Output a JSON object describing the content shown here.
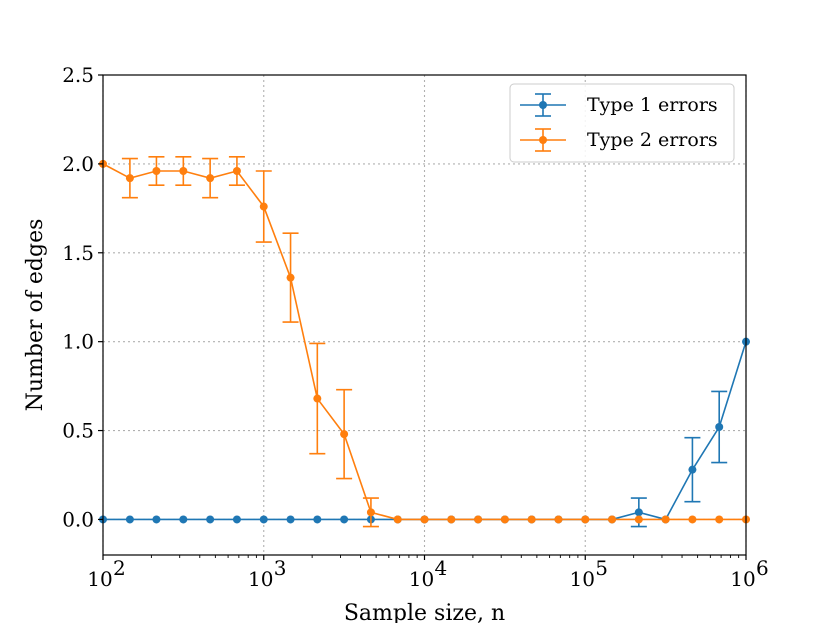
{
  "chart_data": {
    "type": "line",
    "xscale": "log",
    "xlim": [
      100,
      1000000
    ],
    "ylim": [
      -0.2,
      2.5
    ],
    "xlabel": "Sample size, n",
    "ylabel": "Number of edges",
    "grid": true,
    "legend_position": "top-right",
    "x_ticks": [
      {
        "value": 100,
        "base": "10",
        "exp": "2"
      },
      {
        "value": 1000,
        "base": "10",
        "exp": "3"
      },
      {
        "value": 10000,
        "base": "10",
        "exp": "4"
      },
      {
        "value": 100000,
        "base": "10",
        "exp": "5"
      },
      {
        "value": 1000000,
        "base": "10",
        "exp": "6"
      }
    ],
    "y_ticks": [
      {
        "value": 0.0,
        "label": "0.0"
      },
      {
        "value": 0.5,
        "label": "0.5"
      },
      {
        "value": 1.0,
        "label": "1.0"
      },
      {
        "value": 1.5,
        "label": "1.5"
      },
      {
        "value": 2.0,
        "label": "2.0"
      },
      {
        "value": 2.5,
        "label": "2.5"
      }
    ],
    "x": [
      100,
      147,
      215,
      316,
      464,
      681,
      1000,
      1468,
      2154,
      3162,
      4642,
      6813,
      10000,
      14678,
      21544,
      31623,
      46416,
      68129,
      100000,
      146780,
      215443,
      316228,
      464159,
      681292,
      1000000
    ],
    "series": [
      {
        "name": "Type 1 errors",
        "color": "#1f77b4",
        "values": [
          0,
          0,
          0,
          0,
          0,
          0,
          0,
          0,
          0,
          0,
          0,
          0,
          0,
          0,
          0,
          0,
          0,
          0,
          0,
          0,
          0.04,
          0,
          0.28,
          0.52,
          1.0
        ],
        "errors": [
          0,
          0,
          0,
          0,
          0,
          0,
          0,
          0,
          0,
          0,
          0,
          0,
          0,
          0,
          0,
          0,
          0,
          0,
          0,
          0,
          0.08,
          0,
          0.18,
          0.2,
          0
        ]
      },
      {
        "name": "Type 2 errors",
        "color": "#ff7f0e",
        "values": [
          2.0,
          1.92,
          1.96,
          1.96,
          1.92,
          1.96,
          1.76,
          1.36,
          0.68,
          0.48,
          0.04,
          0,
          0,
          0,
          0,
          0,
          0,
          0,
          0,
          0,
          0,
          0,
          0,
          0,
          0
        ],
        "errors": [
          0,
          0.11,
          0.08,
          0.08,
          0.11,
          0.08,
          0.2,
          0.25,
          0.31,
          0.25,
          0.08,
          0,
          0,
          0,
          0,
          0,
          0,
          0,
          0,
          0,
          0,
          0,
          0,
          0,
          0
        ]
      }
    ]
  }
}
